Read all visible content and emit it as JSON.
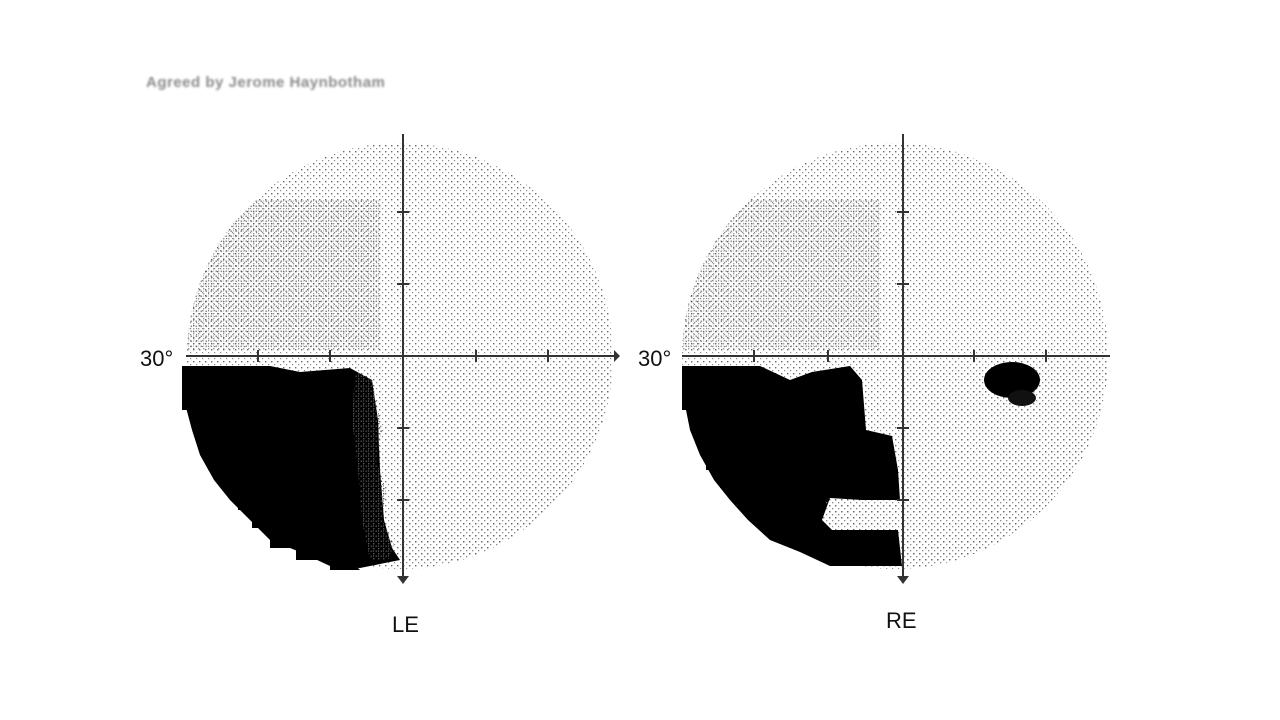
{
  "caption": "Agreed by Jerome Haynbotham",
  "fields": [
    {
      "id": "left",
      "eye_label": "LE",
      "eccentricity_label": "30°"
    },
    {
      "id": "right",
      "eye_label": "RE",
      "eccentricity_label": "30°"
    }
  ],
  "colors": {
    "defect": "#000000",
    "axis": "#333333",
    "stipple": "#555555"
  }
}
